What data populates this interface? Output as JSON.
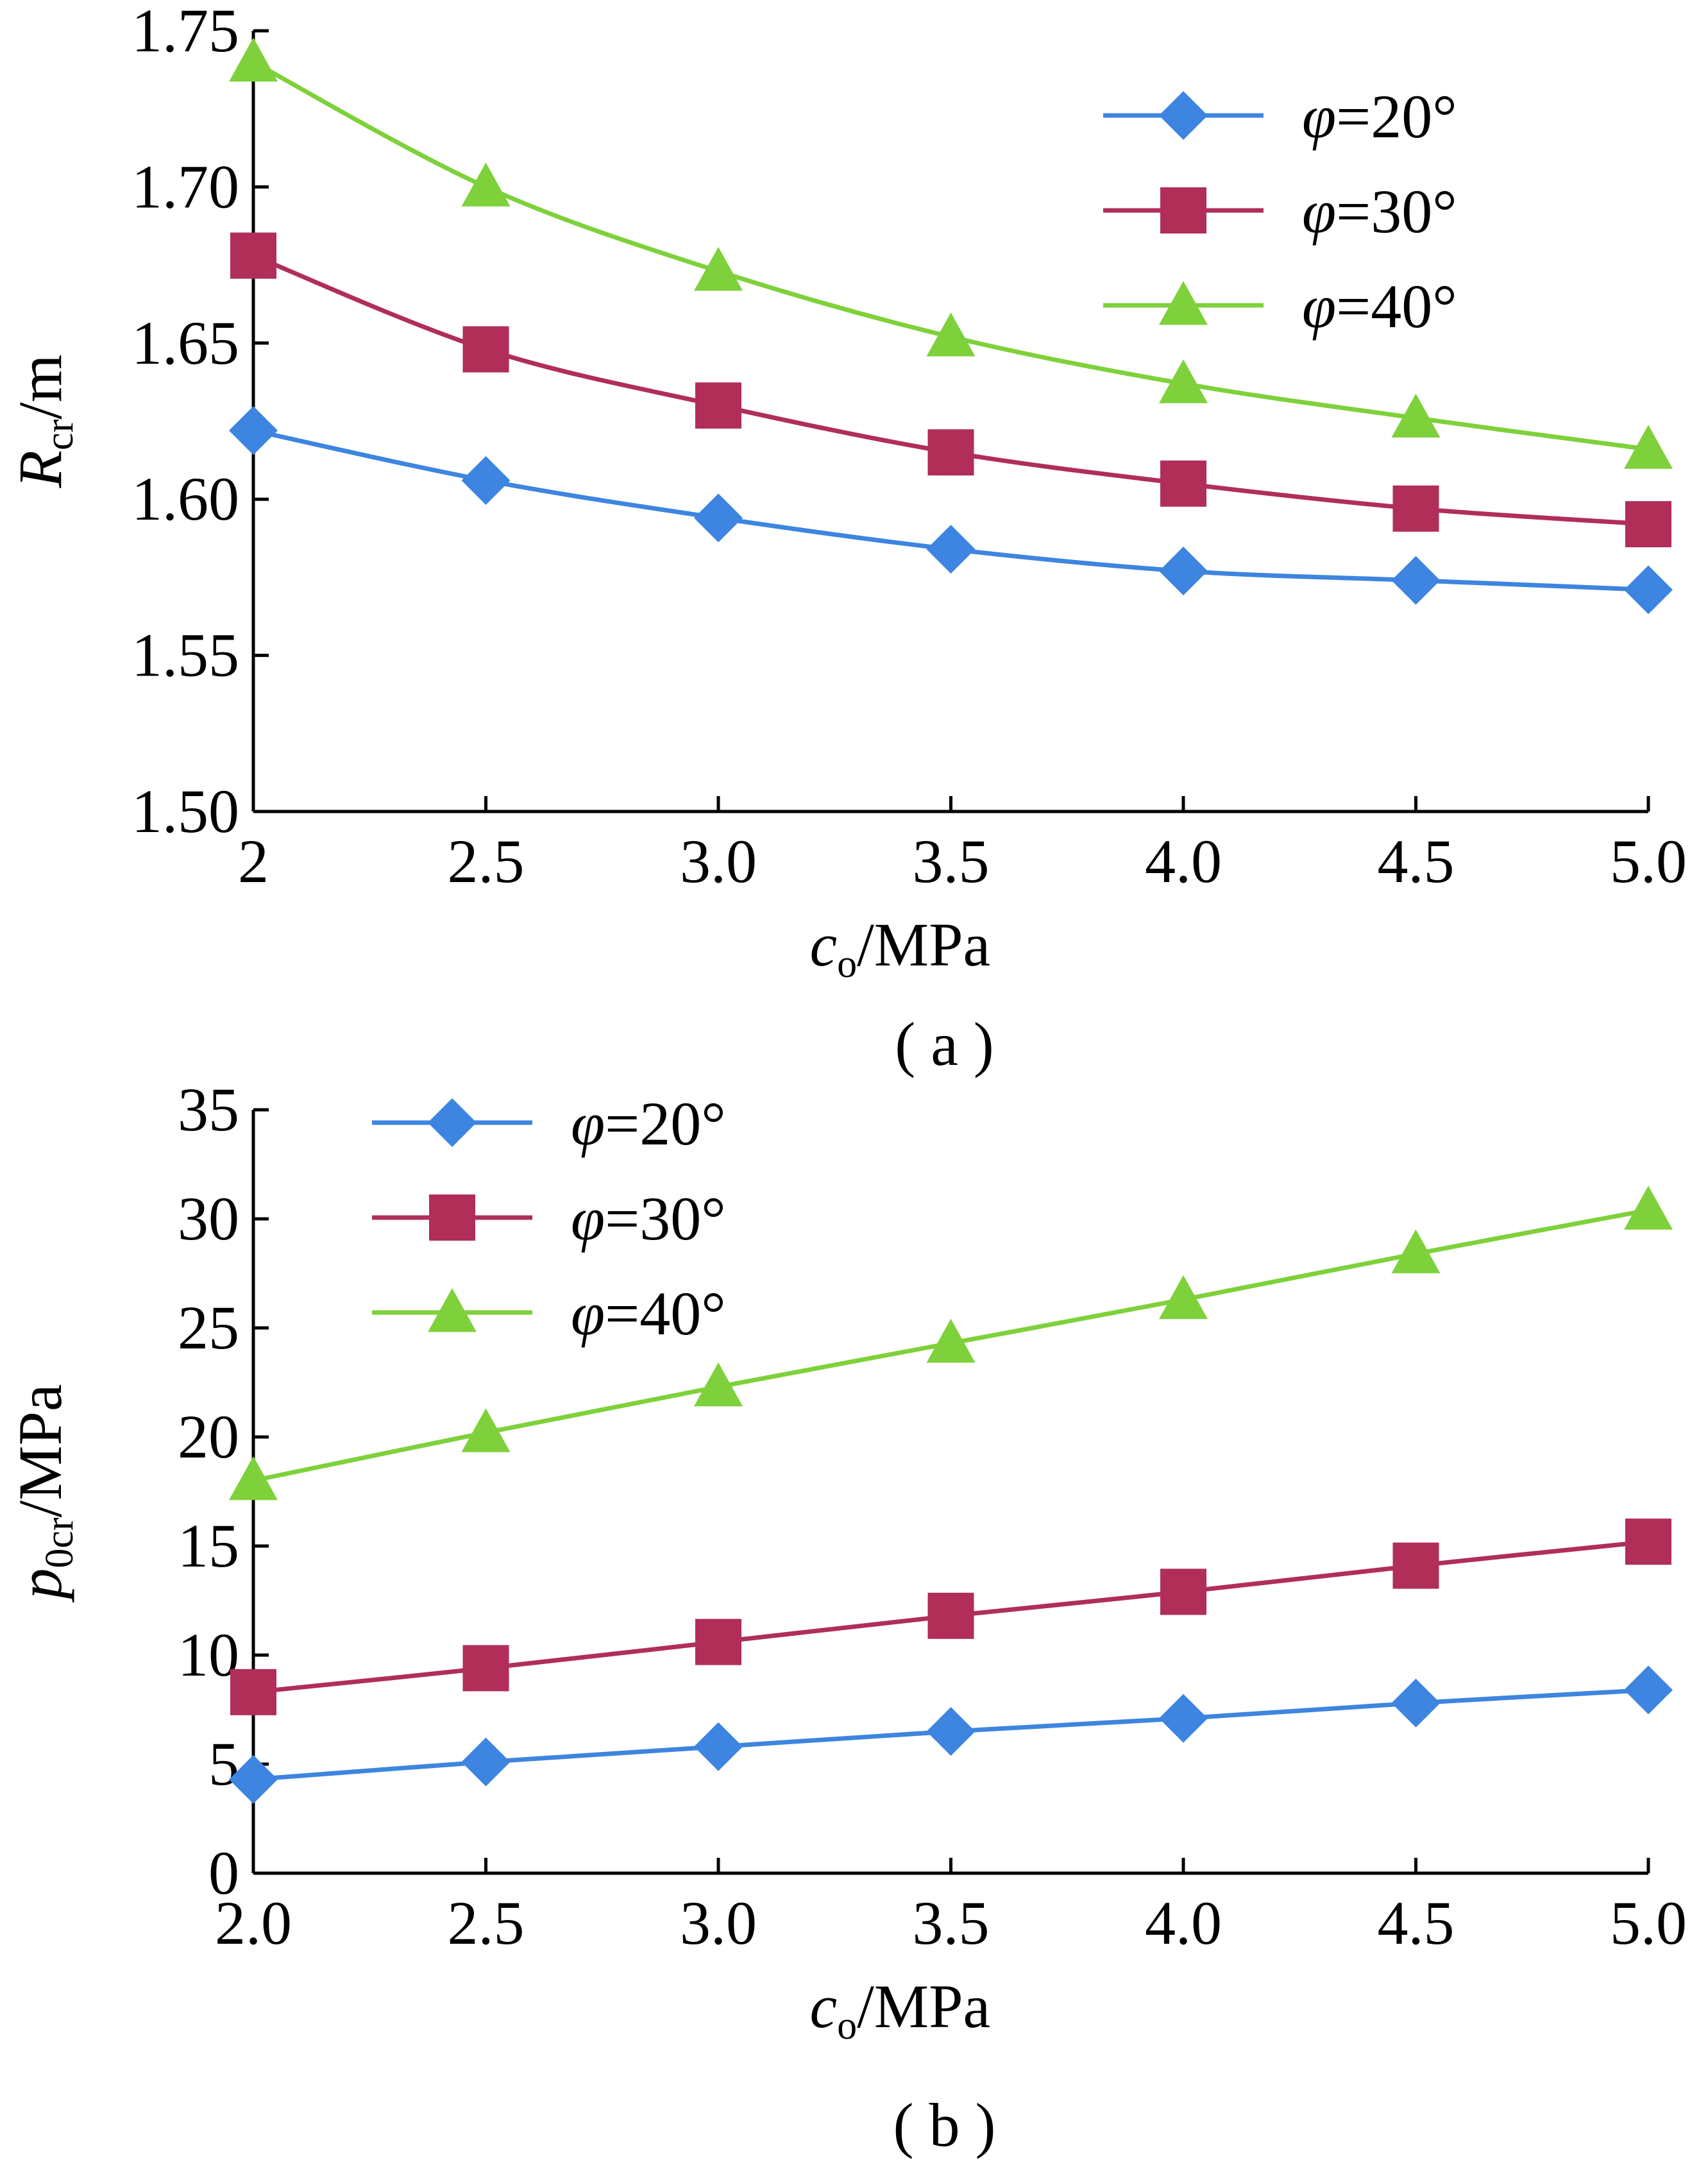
{
  "chart_data": [
    {
      "type": "line",
      "panel_label": "( a )",
      "xlabel": {
        "main": "c",
        "sub": "o",
        "rest": "/MPa"
      },
      "ylabel": {
        "main": "R",
        "sub": "cr",
        "rest": "/m"
      },
      "x_tick_labels": [
        "2",
        "2.5",
        "3.0",
        "3.5",
        "4.0",
        "4.5",
        "5.0"
      ],
      "x_ticks": [
        2,
        2.5,
        3,
        3.5,
        4,
        4.5,
        5
      ],
      "y_tick_labels": [
        "1.50",
        "1.55",
        "1.60",
        "1.65",
        "1.70",
        "1.75"
      ],
      "y_ticks": [
        1.5,
        1.55,
        1.6,
        1.65,
        1.7,
        1.75
      ],
      "xlim": [
        2,
        5
      ],
      "ylim": [
        1.5,
        1.75
      ],
      "grid": false,
      "legend_position": "top-right",
      "x": [
        2,
        2.5,
        3,
        3.5,
        4,
        4.5,
        5
      ],
      "series": [
        {
          "name": "φ=20°",
          "name_symbol": "φ",
          "name_rest": "=20°",
          "marker": "diamond",
          "color": "#3D85E0",
          "values": [
            1.622,
            1.606,
            1.594,
            1.584,
            1.577,
            1.574,
            1.571
          ]
        },
        {
          "name": "φ=30°",
          "name_symbol": "φ",
          "name_rest": "=30°",
          "marker": "square",
          "color": "#B02E58",
          "values": [
            1.678,
            1.648,
            1.63,
            1.615,
            1.605,
            1.597,
            1.592
          ]
        },
        {
          "name": "φ=40°",
          "name_symbol": "φ",
          "name_rest": "=40°",
          "marker": "triangle",
          "color": "#7ED13A",
          "values": [
            1.74,
            1.7,
            1.673,
            1.652,
            1.637,
            1.626,
            1.616
          ]
        }
      ]
    },
    {
      "type": "line",
      "panel_label": "( b )",
      "xlabel": {
        "main": "c",
        "sub": "o",
        "rest": "/MPa"
      },
      "ylabel": {
        "main": "p",
        "sub": "0cr",
        "rest": "/MPa"
      },
      "x_tick_labels": [
        "2.0",
        "2.5",
        "3.0",
        "3.5",
        "4.0",
        "4.5",
        "5.0"
      ],
      "x_ticks": [
        2,
        2.5,
        3,
        3.5,
        4,
        4.5,
        5
      ],
      "y_tick_labels": [
        "0",
        "5",
        "10",
        "15",
        "20",
        "25",
        "30",
        "35"
      ],
      "y_ticks": [
        0,
        5,
        10,
        15,
        20,
        25,
        30,
        35
      ],
      "xlim": [
        2,
        5
      ],
      "ylim": [
        0,
        35
      ],
      "grid": false,
      "legend_position": "top-left",
      "x": [
        2,
        2.5,
        3,
        3.5,
        4,
        4.5,
        5
      ],
      "series": [
        {
          "name": "φ=20°",
          "name_symbol": "φ",
          "name_rest": "=20°",
          "marker": "diamond",
          "color": "#3D85E0",
          "values": [
            4.3,
            5.1,
            5.8,
            6.5,
            7.1,
            7.8,
            8.4
          ]
        },
        {
          "name": "φ=30°",
          "name_symbol": "φ",
          "name_rest": "=30°",
          "marker": "square",
          "color": "#B02E58",
          "values": [
            8.3,
            9.4,
            10.6,
            11.8,
            12.9,
            14.1,
            15.2
          ]
        },
        {
          "name": "φ=40°",
          "name_symbol": "φ",
          "name_rest": "=40°",
          "marker": "triangle",
          "color": "#7ED13A",
          "values": [
            18.0,
            20.2,
            22.3,
            24.3,
            26.3,
            28.4,
            30.4
          ]
        }
      ]
    }
  ]
}
